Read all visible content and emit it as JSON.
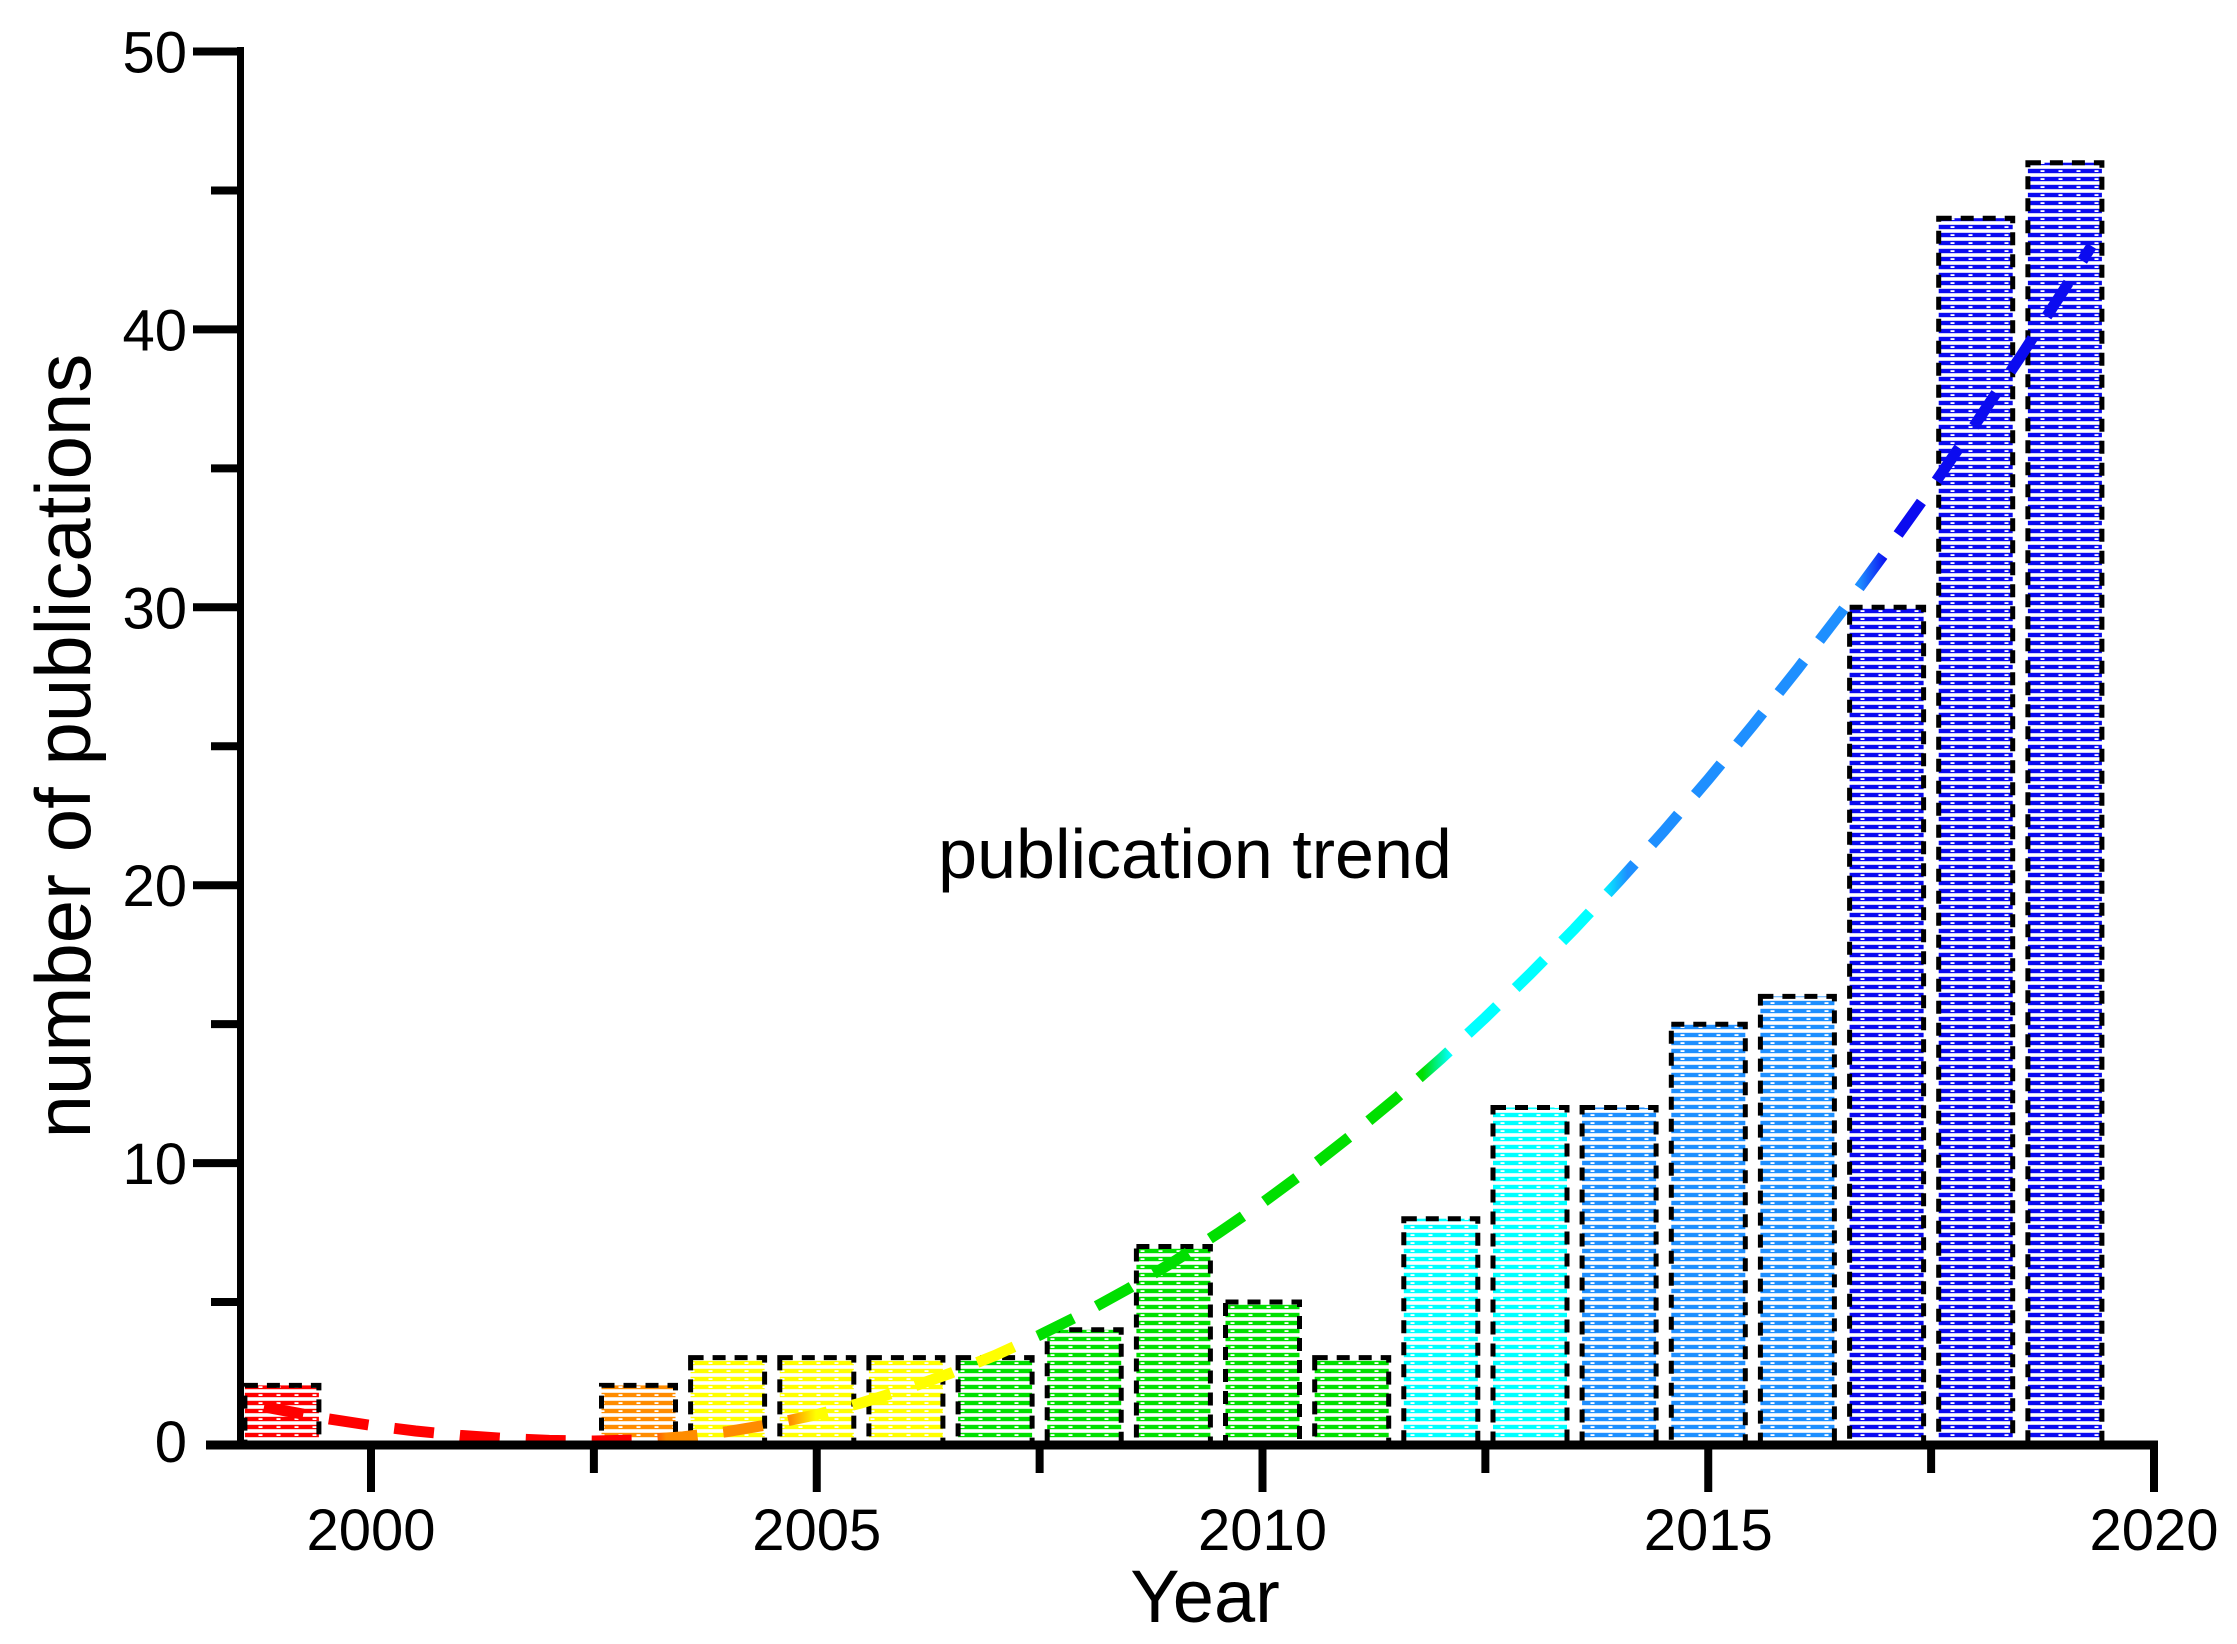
{
  "figure": {
    "background": "#ffffff"
  },
  "chart_data": {
    "type": "bar",
    "title": "",
    "xlabel": "Year",
    "ylabel": "number of publications",
    "annotation": "publication trend",
    "xlim": [
      1998.5,
      2020.33
    ],
    "ylim": [
      0,
      50
    ],
    "x_ticks_major": [
      2000,
      2005,
      2010,
      2015,
      2020
    ],
    "x_ticks_minor": [
      2002.5,
      2007.5,
      2012.5,
      2017.5
    ],
    "y_ticks_major": [
      0,
      10,
      20,
      30,
      40,
      50
    ],
    "y_ticks_minor": [
      5,
      15,
      25,
      35,
      45
    ],
    "grid": false,
    "legend": "none",
    "bar_width_years": 0.83,
    "palette": {
      "red": "#FF0000",
      "orange": "#FF8C00",
      "yellow": "#FFFF00",
      "green": "#00DF00",
      "cyan": "#00FFFF",
      "lightblue": "#1E8FFF",
      "blue": "#0B0BF0"
    },
    "bars": [
      {
        "year": 1999,
        "value": 2,
        "color": "red"
      },
      {
        "year": 2003,
        "value": 2,
        "color": "orange"
      },
      {
        "year": 2004,
        "value": 3,
        "color": "yellow"
      },
      {
        "year": 2005,
        "value": 3,
        "color": "yellow"
      },
      {
        "year": 2006,
        "value": 3,
        "color": "yellow"
      },
      {
        "year": 2007,
        "value": 3,
        "color": "green"
      },
      {
        "year": 2008,
        "value": 4,
        "color": "green"
      },
      {
        "year": 2009,
        "value": 7,
        "color": "green"
      },
      {
        "year": 2010,
        "value": 5,
        "color": "green"
      },
      {
        "year": 2011,
        "value": 3,
        "color": "green"
      },
      {
        "year": 2012,
        "value": 8,
        "color": "cyan"
      },
      {
        "year": 2013,
        "value": 12,
        "color": "cyan"
      },
      {
        "year": 2014,
        "value": 12,
        "color": "lightblue"
      },
      {
        "year": 2015,
        "value": 15,
        "color": "lightblue"
      },
      {
        "year": 2016,
        "value": 16,
        "color": "lightblue"
      },
      {
        "year": 2017,
        "value": 30,
        "color": "blue"
      },
      {
        "year": 2018,
        "value": 44,
        "color": "blue"
      },
      {
        "year": 2019,
        "value": 46,
        "color": "blue"
      }
    ],
    "trend": {
      "style": "dashed",
      "points": [
        [
          1998.8,
          1.23
        ],
        [
          1999.5,
          0.81
        ],
        [
          2000,
          0.56
        ],
        [
          2000.5,
          0.36
        ],
        [
          2001,
          0.2
        ],
        [
          2001.5,
          0.09
        ],
        [
          2002,
          0.02
        ],
        [
          2002.5,
          0.0
        ],
        [
          2003,
          0.04
        ],
        [
          2003.5,
          0.15
        ],
        [
          2004,
          0.34
        ],
        [
          2004.5,
          0.61
        ],
        [
          2005,
          0.95
        ],
        [
          2005.5,
          1.37
        ],
        [
          2006,
          1.87
        ],
        [
          2006.5,
          2.44
        ],
        [
          2007,
          3.08
        ],
        [
          2007.5,
          3.81
        ],
        [
          2008,
          4.61
        ],
        [
          2008.5,
          5.49
        ],
        [
          2009,
          6.44
        ],
        [
          2009.5,
          7.47
        ],
        [
          2010,
          8.57
        ],
        [
          2010.5,
          9.75
        ],
        [
          2011,
          11.01
        ],
        [
          2011.5,
          12.34
        ],
        [
          2012,
          13.75
        ],
        [
          2012.5,
          15.24
        ],
        [
          2013,
          16.8
        ],
        [
          2013.5,
          18.43
        ],
        [
          2014,
          20.15
        ],
        [
          2014.5,
          21.94
        ],
        [
          2015,
          23.81
        ],
        [
          2015.5,
          25.75
        ],
        [
          2016,
          27.77
        ],
        [
          2016.5,
          29.86
        ],
        [
          2017,
          32.04
        ],
        [
          2017.5,
          34.28
        ],
        [
          2018,
          36.61
        ],
        [
          2018.5,
          39.01
        ],
        [
          2019,
          41.48
        ],
        [
          2019.3,
          43.0
        ]
      ],
      "color_stops": [
        [
          1998.8,
          "red"
        ],
        [
          2003.0,
          "red"
        ],
        [
          2003.3,
          "orange"
        ],
        [
          2004.7,
          "orange"
        ],
        [
          2005.0,
          "yellow"
        ],
        [
          2007.2,
          "yellow"
        ],
        [
          2007.5,
          "green"
        ],
        [
          2011.8,
          "green"
        ],
        [
          2012.1,
          "cyan"
        ],
        [
          2013.8,
          "cyan"
        ],
        [
          2014.1,
          "lightblue"
        ],
        [
          2016.7,
          "lightblue"
        ],
        [
          2017.0,
          "blue"
        ],
        [
          2019.3,
          "blue"
        ]
      ]
    }
  }
}
